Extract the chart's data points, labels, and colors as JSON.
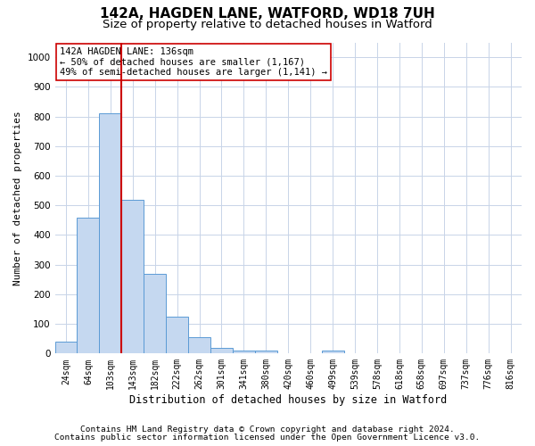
{
  "title_line1": "142A, HAGDEN LANE, WATFORD, WD18 7UH",
  "title_line2": "Size of property relative to detached houses in Watford",
  "xlabel": "Distribution of detached houses by size in Watford",
  "ylabel": "Number of detached properties",
  "categories": [
    "24sqm",
    "64sqm",
    "103sqm",
    "143sqm",
    "182sqm",
    "222sqm",
    "262sqm",
    "301sqm",
    "341sqm",
    "380sqm",
    "420sqm",
    "460sqm",
    "499sqm",
    "539sqm",
    "578sqm",
    "618sqm",
    "658sqm",
    "697sqm",
    "737sqm",
    "776sqm",
    "816sqm"
  ],
  "values": [
    40,
    460,
    810,
    520,
    270,
    125,
    55,
    20,
    10,
    10,
    0,
    0,
    10,
    0,
    0,
    0,
    0,
    0,
    0,
    0,
    0
  ],
  "bar_color": "#c5d8f0",
  "bar_edge_color": "#5b9bd5",
  "vline_position": 2.5,
  "vline_color": "#cc0000",
  "annotation_text": "142A HAGDEN LANE: 136sqm\n← 50% of detached houses are smaller (1,167)\n49% of semi-detached houses are larger (1,141) →",
  "annotation_box_color": "#ffffff",
  "annotation_box_edge": "#cc0000",
  "ylim": [
    0,
    1050
  ],
  "yticks": [
    0,
    100,
    200,
    300,
    400,
    500,
    600,
    700,
    800,
    900,
    1000
  ],
  "footer_line1": "Contains HM Land Registry data © Crown copyright and database right 2024.",
  "footer_line2": "Contains public sector information licensed under the Open Government Licence v3.0.",
  "bg_color": "#ffffff",
  "grid_color": "#c8d4e8"
}
